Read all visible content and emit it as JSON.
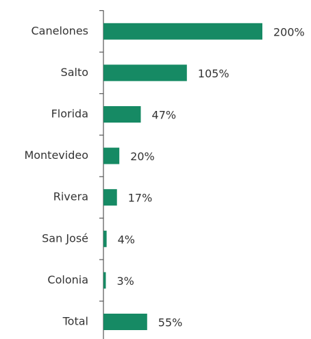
{
  "chart_data": {
    "type": "hbar",
    "categories": [
      "Canelones",
      "Salto",
      "Florida",
      "Montevideo",
      "Rivera",
      "San José",
      "Colonia",
      "Total"
    ],
    "values": [
      200,
      105,
      47,
      20,
      17,
      4,
      3,
      55
    ],
    "value_labels": [
      "200%",
      "105%",
      "47%",
      "20%",
      "17%",
      "4%",
      "3%",
      "55%"
    ],
    "color": "#168a64"
  }
}
